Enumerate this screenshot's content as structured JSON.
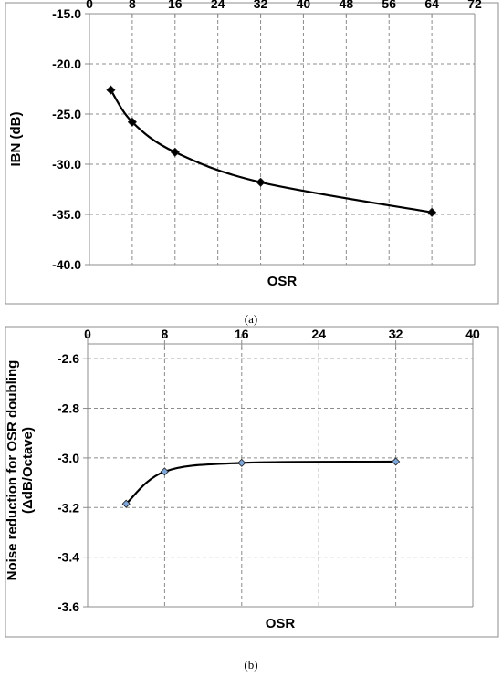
{
  "chart_data": [
    {
      "type": "line",
      "caption": "(a)",
      "xlabel": "OSR",
      "ylabel": "IBN (dB)",
      "xlim": [
        0,
        72
      ],
      "ylim": [
        -40,
        -15
      ],
      "x_ticks": [
        0,
        8,
        16,
        24,
        32,
        40,
        48,
        56,
        64,
        72
      ],
      "y_ticks": [
        -15.0,
        -20.0,
        -25.0,
        -30.0,
        -35.0,
        -40.0
      ],
      "y_tick_labels": [
        "-15.0",
        "-20.0",
        "-25.0",
        "-30.0",
        "-35.0",
        "-40.0"
      ],
      "x_axis_position": "top",
      "grid": true,
      "marker": "diamond",
      "marker_color": "#000000",
      "series": [
        {
          "x": [
            4,
            8,
            16,
            32,
            64
          ],
          "values": [
            -22.6,
            -25.8,
            -28.8,
            -31.8,
            -34.8
          ]
        }
      ]
    },
    {
      "type": "line",
      "caption": "(b)",
      "xlabel": "OSR",
      "ylabel": [
        "Noise reduction for OSR doubling",
        "(ΔdB/Octave)"
      ],
      "xlim": [
        0,
        40
      ],
      "ylim": [
        -3.6,
        -2.5
      ],
      "x_ticks": [
        0,
        8,
        16,
        24,
        32,
        40
      ],
      "y_ticks": [
        -2.6,
        -2.8,
        -3.0,
        -3.2,
        -3.4,
        -3.6
      ],
      "y_tick_labels": [
        "-2.6",
        "-2.8",
        "-3.0",
        "-3.2",
        "-3.4",
        "-3.6"
      ],
      "x_axis_position": "top",
      "grid": true,
      "marker": "diamond",
      "marker_color": "#7ea6d8",
      "series": [
        {
          "x": [
            4,
            8,
            16,
            32
          ],
          "values": [
            -3.185,
            -3.055,
            -3.02,
            -3.015
          ]
        }
      ]
    }
  ]
}
